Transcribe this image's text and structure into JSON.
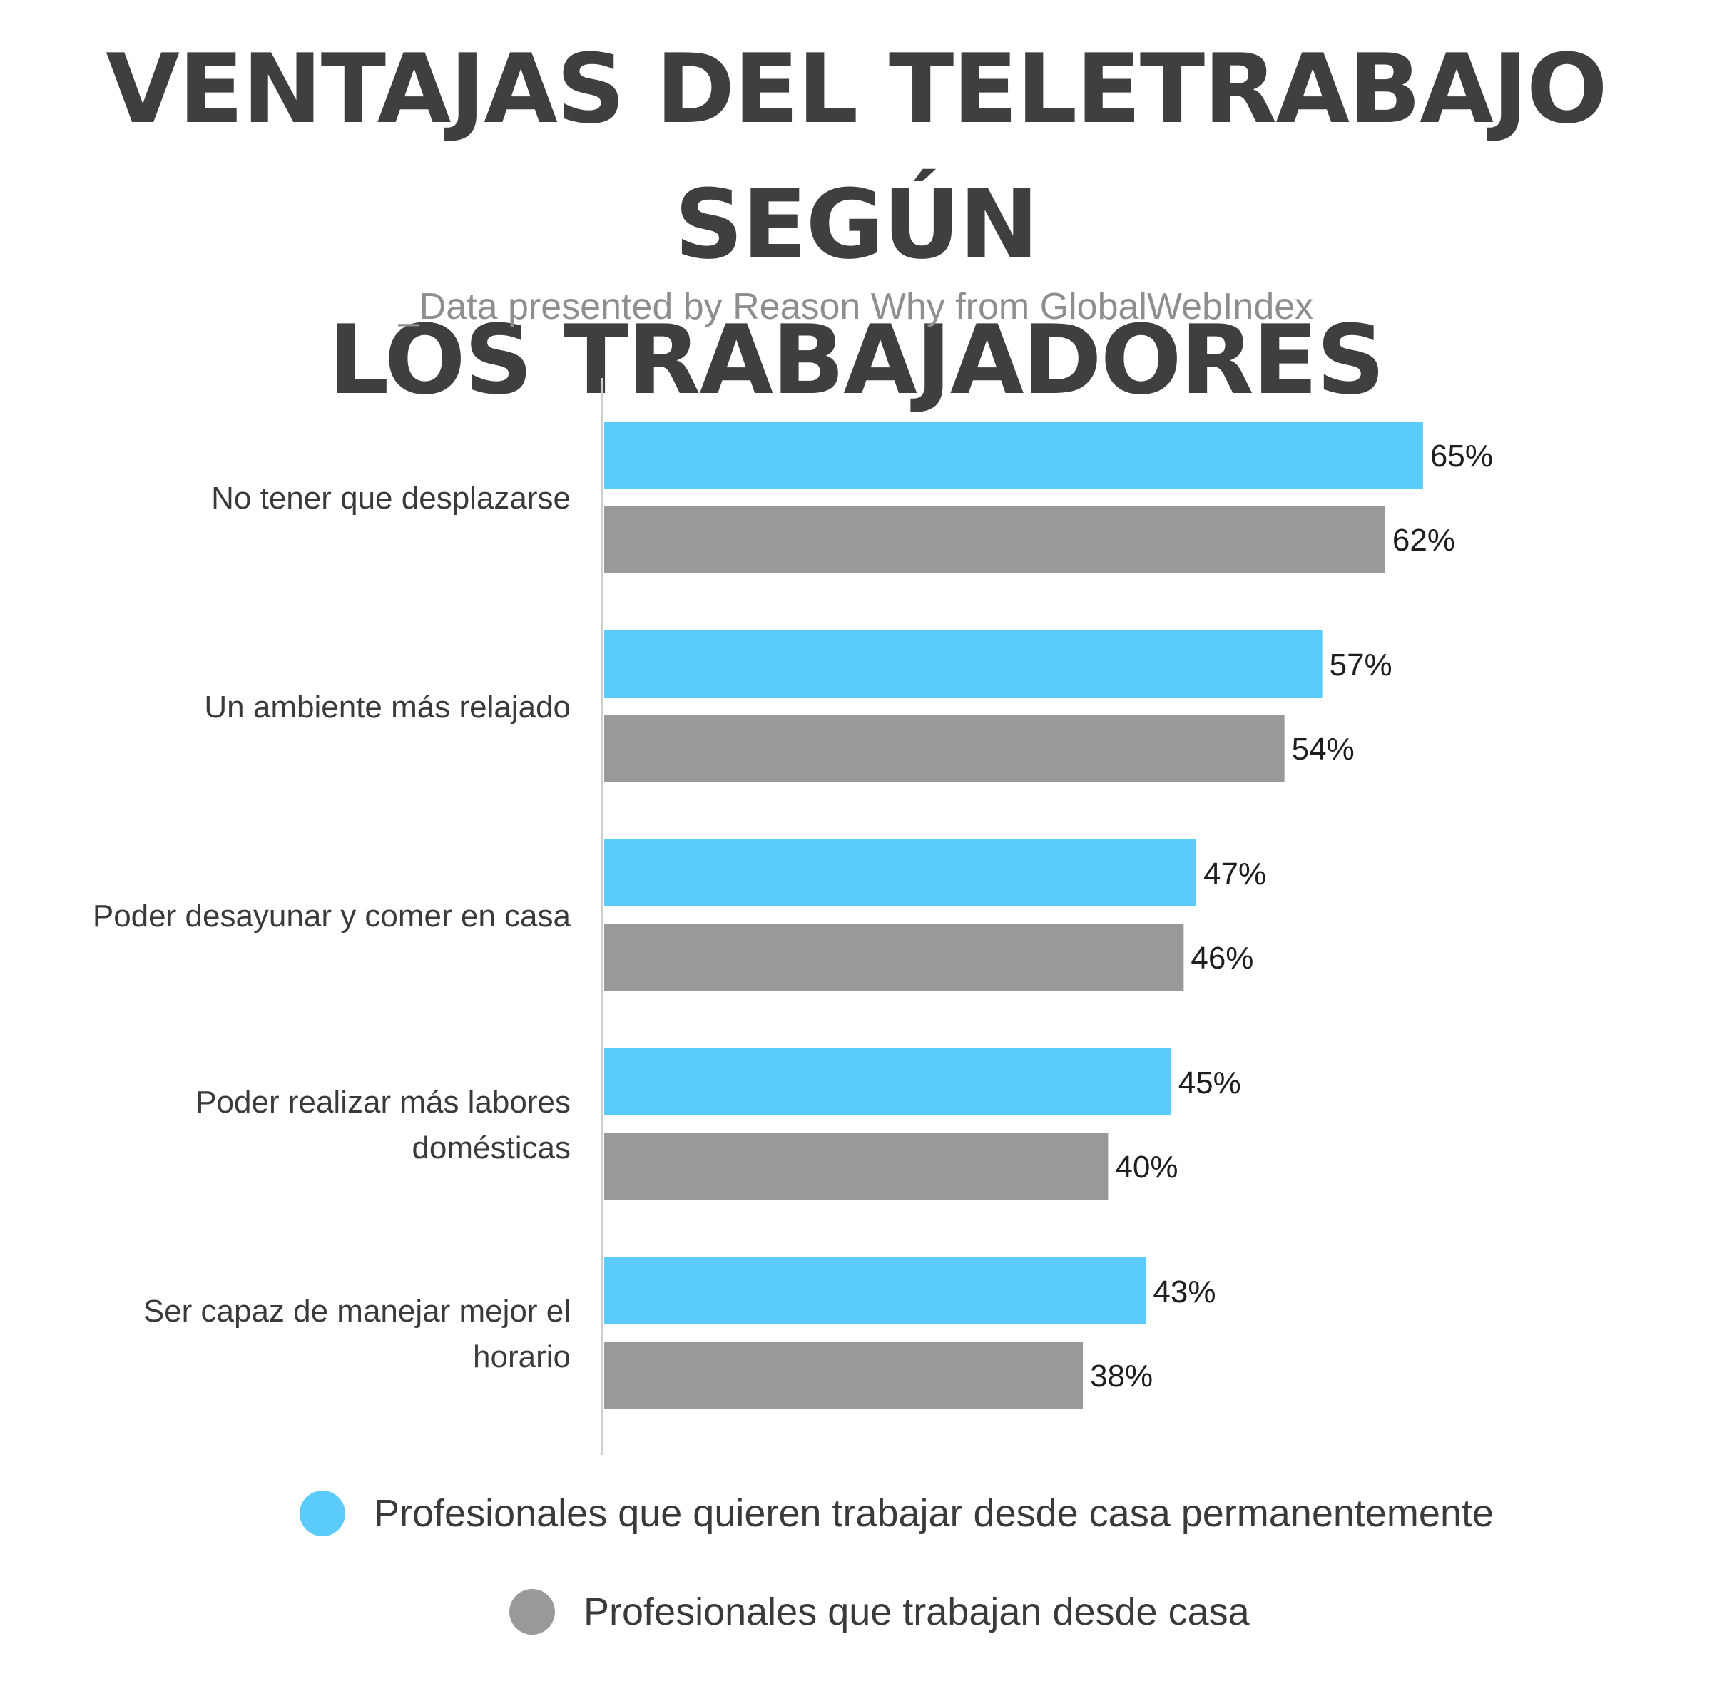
{
  "header": {
    "title_line1": "VENTAJAS DEL TELETRABAJO SEGÚN",
    "title_line2": "LOS TRABAJADORES",
    "subtitle": "_Data presented by Reason Why from GlobalWebIndex"
  },
  "chart_data": {
    "type": "bar",
    "orientation": "horizontal",
    "title": "VENTAJAS DEL TELETRABAJO SEGÚN LOS TRABAJADORES",
    "subtitle": "_Data presented by Reason Why from GlobalWebIndex",
    "xlabel": "",
    "ylabel": "",
    "xlim": [
      0,
      100
    ],
    "grid": false,
    "legend_position": "bottom",
    "categories": [
      [
        "No tener que desplazarse"
      ],
      [
        "Un ambiente más relajado"
      ],
      [
        "Poder desayunar y comer en casa"
      ],
      [
        "Poder realizar más labores",
        "domésticas"
      ],
      [
        "Ser capaz de manejar mejor el",
        "horario"
      ]
    ],
    "series": [
      {
        "name": "Profesionales que quieren trabajar desde casa permanentemente",
        "color": "#5bcbfb",
        "values": [
          65,
          57,
          47,
          45,
          43
        ],
        "labels": [
          "65%",
          "57%",
          "47%",
          "45%",
          "43%"
        ]
      },
      {
        "name": "Profesionales que trabajan desde casa",
        "color": "#999999",
        "values": [
          62,
          54,
          46,
          40,
          38
        ],
        "labels": [
          "62%",
          "54%",
          "46%",
          "40%",
          "38%"
        ]
      }
    ]
  }
}
